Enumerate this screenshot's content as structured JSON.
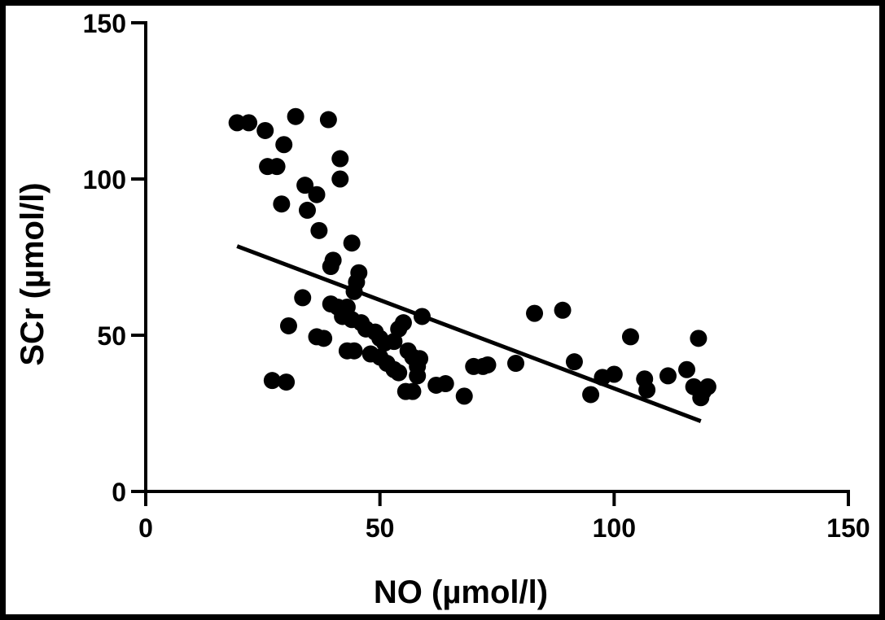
{
  "chart_data": {
    "type": "scatter",
    "title": "",
    "xlabel": "NO (µmol/l)",
    "ylabel": "SCr (µmol/l)",
    "xlim": [
      0,
      150
    ],
    "ylim": [
      0,
      150
    ],
    "xticks": [
      "0",
      "50",
      "100",
      "150"
    ],
    "yticks": [
      "0",
      "50",
      "100",
      "150"
    ],
    "grid": false,
    "legend": "none",
    "marker_color": "#000000",
    "points": [
      {
        "x": 19.5,
        "y": 118
      },
      {
        "x": 22,
        "y": 118
      },
      {
        "x": 25.5,
        "y": 115.5
      },
      {
        "x": 26,
        "y": 104
      },
      {
        "x": 28,
        "y": 104
      },
      {
        "x": 29.5,
        "y": 111
      },
      {
        "x": 32,
        "y": 120
      },
      {
        "x": 29,
        "y": 92
      },
      {
        "x": 34,
        "y": 98
      },
      {
        "x": 34.5,
        "y": 90
      },
      {
        "x": 36.5,
        "y": 95
      },
      {
        "x": 37,
        "y": 83.5
      },
      {
        "x": 39,
        "y": 119
      },
      {
        "x": 41.5,
        "y": 106.5
      },
      {
        "x": 41.5,
        "y": 100
      },
      {
        "x": 40,
        "y": 74
      },
      {
        "x": 39.5,
        "y": 72
      },
      {
        "x": 44,
        "y": 79.5
      },
      {
        "x": 45.5,
        "y": 70
      },
      {
        "x": 45,
        "y": 67
      },
      {
        "x": 44.5,
        "y": 64
      },
      {
        "x": 33.5,
        "y": 62
      },
      {
        "x": 39.5,
        "y": 60
      },
      {
        "x": 41,
        "y": 59
      },
      {
        "x": 43,
        "y": 59
      },
      {
        "x": 42,
        "y": 56
      },
      {
        "x": 44,
        "y": 55
      },
      {
        "x": 30.5,
        "y": 53
      },
      {
        "x": 36.5,
        "y": 49.5
      },
      {
        "x": 38,
        "y": 49
      },
      {
        "x": 46,
        "y": 54
      },
      {
        "x": 47,
        "y": 52
      },
      {
        "x": 49,
        "y": 51
      },
      {
        "x": 50,
        "y": 49
      },
      {
        "x": 51,
        "y": 47.5
      },
      {
        "x": 53,
        "y": 48
      },
      {
        "x": 55,
        "y": 54
      },
      {
        "x": 54,
        "y": 52
      },
      {
        "x": 59,
        "y": 56
      },
      {
        "x": 43,
        "y": 45
      },
      {
        "x": 44.5,
        "y": 45
      },
      {
        "x": 48,
        "y": 44
      },
      {
        "x": 50,
        "y": 43
      },
      {
        "x": 51.5,
        "y": 41
      },
      {
        "x": 53,
        "y": 39
      },
      {
        "x": 54,
        "y": 38
      },
      {
        "x": 56,
        "y": 45
      },
      {
        "x": 57,
        "y": 43
      },
      {
        "x": 58,
        "y": 40
      },
      {
        "x": 58.5,
        "y": 42.5
      },
      {
        "x": 58,
        "y": 37
      },
      {
        "x": 55.5,
        "y": 32
      },
      {
        "x": 57,
        "y": 32
      },
      {
        "x": 62,
        "y": 34
      },
      {
        "x": 64,
        "y": 34.5
      },
      {
        "x": 68,
        "y": 30.5
      },
      {
        "x": 70,
        "y": 40
      },
      {
        "x": 72,
        "y": 40
      },
      {
        "x": 73,
        "y": 40.5
      },
      {
        "x": 79,
        "y": 41
      },
      {
        "x": 83,
        "y": 57
      },
      {
        "x": 89,
        "y": 58
      },
      {
        "x": 91.5,
        "y": 41.5
      },
      {
        "x": 95,
        "y": 31
      },
      {
        "x": 97.5,
        "y": 36.5
      },
      {
        "x": 100,
        "y": 37.5
      },
      {
        "x": 103.5,
        "y": 49.5
      },
      {
        "x": 106.5,
        "y": 36
      },
      {
        "x": 107,
        "y": 32.5
      },
      {
        "x": 111.5,
        "y": 37
      },
      {
        "x": 115.5,
        "y": 39
      },
      {
        "x": 117,
        "y": 33.5
      },
      {
        "x": 118,
        "y": 49
      },
      {
        "x": 119,
        "y": 32
      },
      {
        "x": 118.5,
        "y": 30
      },
      {
        "x": 120,
        "y": 33.5
      },
      {
        "x": 27,
        "y": 35.5
      },
      {
        "x": 30,
        "y": 35
      }
    ],
    "fit_line": {
      "x": [
        19.5,
        118.5
      ],
      "y": [
        78.5,
        22.5
      ]
    }
  }
}
